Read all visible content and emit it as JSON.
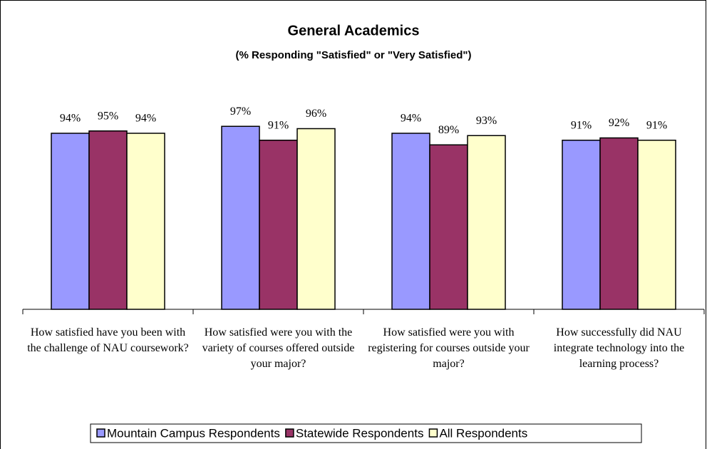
{
  "chart_data": {
    "type": "bar",
    "title": "General Academics",
    "subtitle": "(% Responding \"Satisfied\" or \"Very Satisfied\")",
    "categories": [
      "How satisfied have you been with the challenge of NAU coursework?",
      "How satisfied were you with the variety of courses offered outside your major?",
      "How satisfied were you with registering for courses outside your major?",
      "How successfully did NAU integrate technology into the learning process?"
    ],
    "series": [
      {
        "name": "Mountain Campus Respondents",
        "color": "#9999ff",
        "values": [
          94,
          97,
          94,
          91
        ],
        "value_labels": [
          "94%",
          "97%",
          "94%",
          "91%"
        ]
      },
      {
        "name": "Statewide Respondents",
        "color": "#993366",
        "values": [
          95,
          91,
          89,
          92
        ],
        "value_labels": [
          "95%",
          "91%",
          "89%",
          "92%"
        ]
      },
      {
        "name": "All Respondents",
        "color": "#ffffcc",
        "values": [
          94,
          96,
          93,
          91
        ],
        "value_labels": [
          "94%",
          "96%",
          "93%",
          "91%"
        ]
      }
    ],
    "ylim": [
      18,
      120
    ],
    "legend": "bottom"
  }
}
